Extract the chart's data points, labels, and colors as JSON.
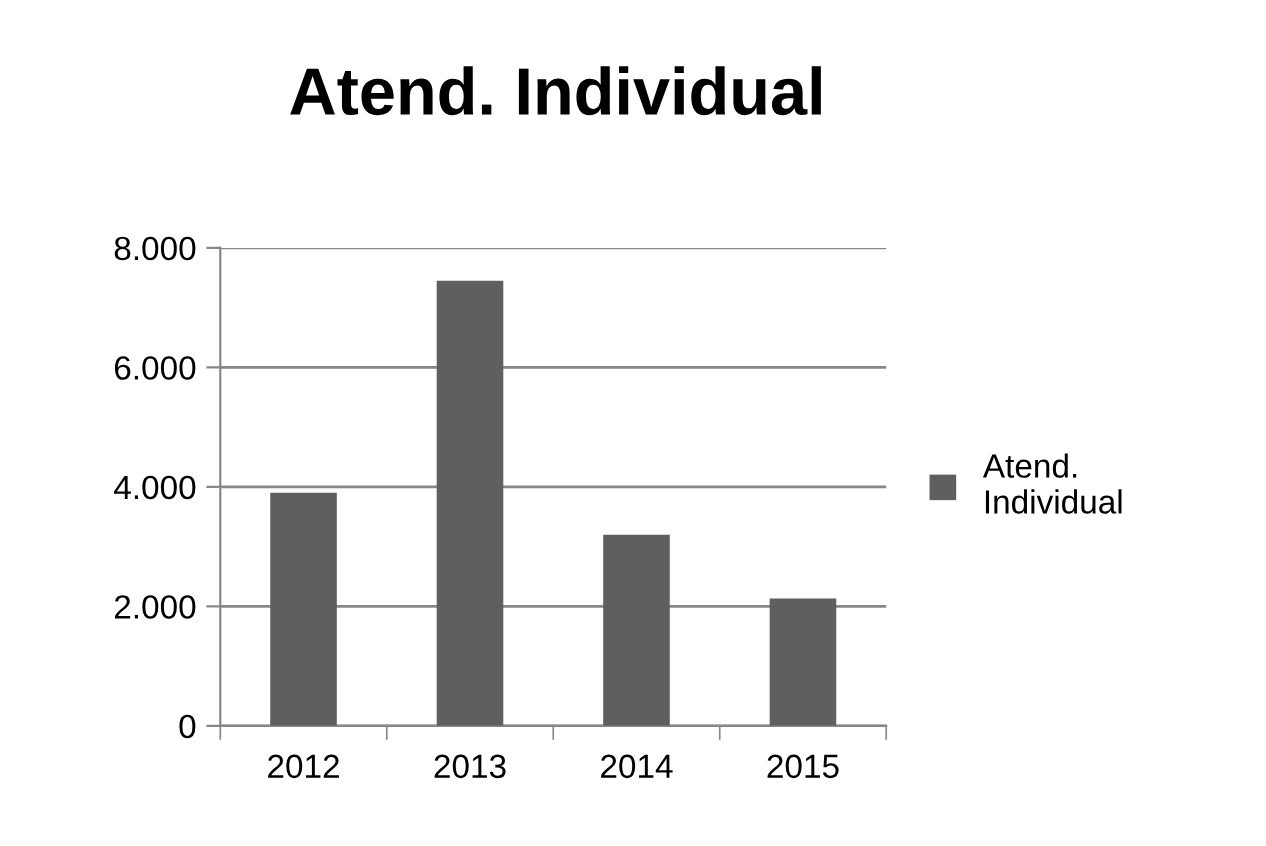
{
  "chart_data": {
    "type": "bar",
    "title": "Atend. Individual",
    "categories": [
      "2012",
      "2013",
      "2014",
      "2015"
    ],
    "series": [
      {
        "name": "Atend. Individual",
        "color": "#5f5f5f",
        "values": [
          3900,
          7450,
          3200,
          2130
        ]
      }
    ],
    "ylim": [
      0,
      8000
    ],
    "yticks": [
      {
        "value": 0,
        "label": "0"
      },
      {
        "value": 2000,
        "label": "2.000"
      },
      {
        "value": 4000,
        "label": "4.000"
      },
      {
        "value": 6000,
        "label": "6.000"
      },
      {
        "value": 8000,
        "label": "8.000"
      }
    ],
    "grid": "y",
    "legend": "right"
  }
}
